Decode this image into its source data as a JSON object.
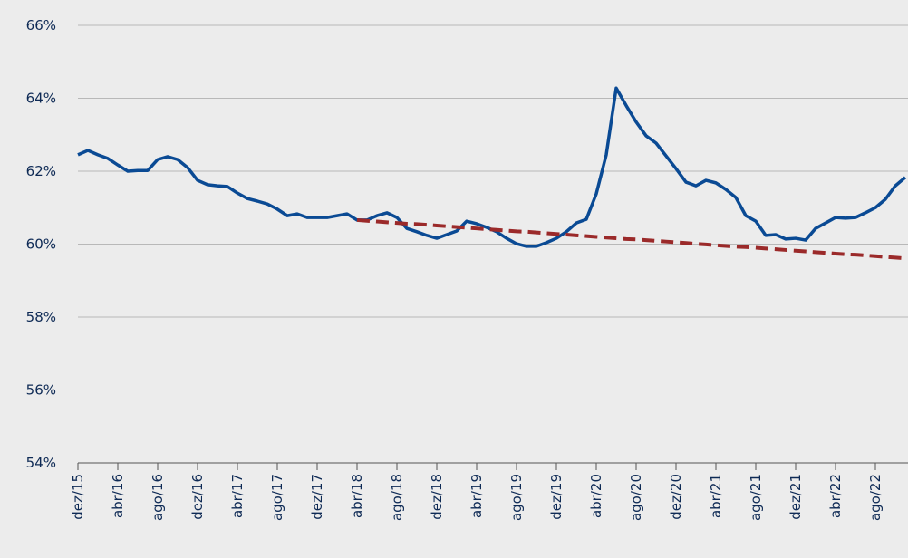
{
  "chart_data": {
    "type": "line",
    "categories": [
      "dez/15",
      null,
      null,
      null,
      "abr/16",
      null,
      null,
      null,
      "ago/16",
      null,
      null,
      null,
      "dez/16",
      null,
      null,
      null,
      "abr/17",
      null,
      null,
      null,
      "ago/17",
      null,
      null,
      null,
      "dez/17",
      null,
      null,
      null,
      "abr/18",
      null,
      null,
      null,
      "ago/18",
      null,
      null,
      null,
      "dez/18",
      null,
      null,
      null,
      "abr/19",
      null,
      null,
      null,
      "ago/19",
      null,
      null,
      null,
      "dez/19",
      null,
      null,
      null,
      "abr/20",
      null,
      null,
      null,
      "ago/20",
      null,
      null,
      null,
      "dez/20",
      null,
      null,
      null,
      "abr/21",
      null,
      null,
      null,
      "ago/21",
      null,
      null,
      null,
      "dez/21",
      null,
      null,
      null,
      "abr/22",
      null,
      null,
      null,
      "ago/22",
      null,
      null,
      null
    ],
    "series": [
      {
        "color": "#0a4a94",
        "dashed": false,
        "values": [
          62.45,
          62.57,
          62.45,
          62.35,
          62.17,
          62.0,
          62.02,
          62.02,
          62.32,
          62.4,
          62.32,
          62.1,
          61.75,
          61.63,
          61.6,
          61.58,
          61.4,
          61.25,
          61.18,
          61.1,
          60.96,
          60.78,
          60.83,
          60.73,
          60.73,
          60.73,
          60.78,
          60.83,
          60.66,
          60.66,
          60.78,
          60.86,
          60.73,
          60.43,
          60.34,
          60.24,
          60.16,
          60.26,
          60.36,
          60.63,
          60.56,
          60.46,
          60.34,
          60.16,
          60.01,
          59.94,
          59.94,
          60.04,
          60.16,
          60.34,
          60.58,
          60.68,
          61.38,
          62.45,
          64.28,
          63.8,
          63.35,
          62.97,
          62.77,
          62.42,
          62.07,
          61.7,
          61.6,
          61.75,
          61.68,
          61.5,
          61.28,
          60.78,
          60.63,
          60.24,
          60.26,
          60.14,
          60.16,
          60.11,
          60.43,
          60.58,
          60.73,
          60.71,
          60.73,
          60.86,
          61.0,
          61.23,
          61.6,
          61.83
        ]
      },
      {
        "color": "#9b2a2a",
        "dashed": true,
        "values": [
          null,
          null,
          null,
          null,
          null,
          null,
          null,
          null,
          null,
          null,
          null,
          null,
          null,
          null,
          null,
          null,
          null,
          null,
          null,
          null,
          null,
          null,
          null,
          null,
          null,
          null,
          null,
          null,
          60.66,
          60.64,
          60.62,
          60.6,
          60.58,
          60.56,
          60.55,
          60.53,
          60.51,
          60.49,
          60.47,
          60.45,
          60.43,
          60.41,
          60.39,
          60.37,
          60.35,
          60.34,
          60.32,
          60.3,
          60.28,
          60.26,
          60.24,
          60.22,
          60.2,
          60.18,
          60.16,
          60.14,
          60.13,
          60.11,
          60.09,
          60.07,
          60.05,
          60.03,
          60.01,
          59.99,
          59.97,
          59.95,
          59.93,
          59.92,
          59.9,
          59.88,
          59.86,
          59.84,
          59.82,
          59.8,
          59.78,
          59.76,
          59.74,
          59.72,
          59.71,
          59.69,
          59.67,
          59.65,
          59.63,
          59.61
        ]
      }
    ],
    "ylim": [
      54,
      66
    ],
    "yticks": [
      {
        "value": 54,
        "label": "54%"
      },
      {
        "value": 56,
        "label": "56%"
      },
      {
        "value": 58,
        "label": "58%"
      },
      {
        "value": 60,
        "label": "60%"
      },
      {
        "value": 62,
        "label": "62%"
      },
      {
        "value": 64,
        "label": "64%"
      },
      {
        "value": 66,
        "label": "66%"
      }
    ],
    "grid": true
  }
}
